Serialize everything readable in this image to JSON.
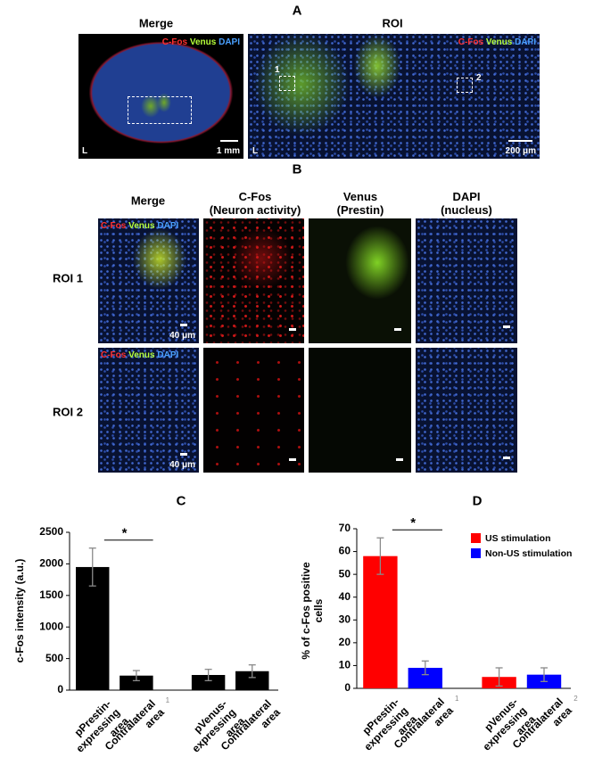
{
  "panel_a": {
    "label": "A",
    "merge": {
      "title": "Merge",
      "channels": [
        "C-Fos",
        "Venus",
        "DAPI"
      ],
      "side": "L",
      "scale": "1 mm"
    },
    "roi": {
      "title": "ROI",
      "channels": [
        "C-Fos",
        "Venus",
        "DAPI"
      ],
      "side": "L",
      "scale": "200 μm",
      "regions": [
        "1",
        "2"
      ]
    }
  },
  "panel_b": {
    "label": "B",
    "columns": [
      "Merge",
      "C-Fos\n(Neuron activity)",
      "Venus\n(Prestin)",
      "DAPI\n(nucleus)"
    ],
    "rows": [
      "ROI 1",
      "ROI 2"
    ],
    "channels": [
      "C-Fos",
      "Venus",
      "DAPI"
    ],
    "scale": "40 μm"
  },
  "chart_data": [
    {
      "type": "bar",
      "label": "C",
      "y_label": "c-Fos intensity (a.u.)",
      "categories": [
        "pPrestin-\nexpressing\narea",
        "Contralateral\narea",
        "pVenus-\nexpressing\narea",
        "Contralateral\narea"
      ],
      "values": [
        1950,
        230,
        240,
        300
      ],
      "errors": [
        300,
        80,
        90,
        100
      ],
      "color": "#000000",
      "ylim": [
        0,
        2500
      ],
      "yticks": [
        0,
        500,
        1000,
        1500,
        2000,
        2500
      ],
      "annotation": "*",
      "markers": [
        "1"
      ]
    },
    {
      "type": "bar",
      "label": "D",
      "y_label": "% of c-Fos positive\ncells",
      "categories": [
        "pPrestin-\nexpressing\narea",
        "Contralateral\narea",
        "pVenus-\nexpressing\narea",
        "Contralateral\narea"
      ],
      "series": [
        {
          "name": "US stimulation",
          "color": "#ff0000",
          "values": [
            58,
            null,
            5,
            null
          ],
          "errors": [
            8,
            null,
            4,
            null
          ]
        },
        {
          "name": "Non-US stimulation",
          "color": "#0000ff",
          "values": [
            null,
            9,
            null,
            6
          ],
          "errors": [
            null,
            3,
            null,
            3
          ]
        }
      ],
      "ylim": [
        0,
        70
      ],
      "yticks": [
        0,
        10,
        20,
        30,
        40,
        50,
        60,
        70
      ],
      "annotation": "*",
      "markers": [
        "1",
        "2"
      ],
      "legend": "upper right"
    }
  ]
}
